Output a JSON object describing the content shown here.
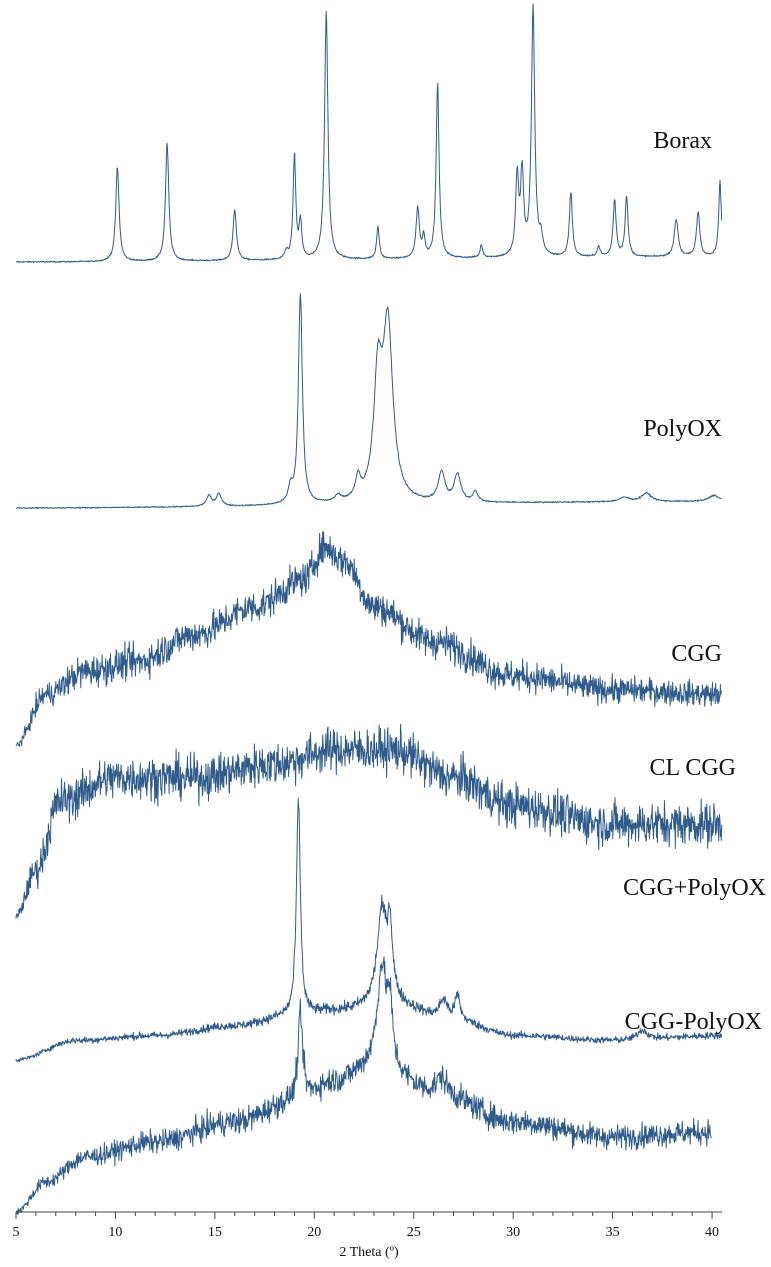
{
  "chart_data": {
    "type": "line",
    "xlabel": "2 Theta (º)",
    "ylabel": "",
    "xlim": [
      5,
      40.5
    ],
    "x_ticks": [
      5,
      10,
      15,
      20,
      25,
      30,
      35,
      40
    ],
    "x_minor_step": 1,
    "grid": false,
    "series": [
      {
        "name": "Borax",
        "color": "#2f5b8c",
        "noise": 0.01,
        "baseline": [
          [
            5,
            0.0
          ],
          [
            40.5,
            0.02
          ]
        ],
        "peaks": [
          [
            10.1,
            0.38,
            0.1
          ],
          [
            12.6,
            0.47,
            0.1
          ],
          [
            16.0,
            0.21,
            0.1
          ],
          [
            18.6,
            0.03,
            0.1
          ],
          [
            19.0,
            0.42,
            0.08
          ],
          [
            19.3,
            0.15,
            0.08
          ],
          [
            20.6,
            1.0,
            0.1
          ],
          [
            23.2,
            0.13,
            0.08
          ],
          [
            25.2,
            0.2,
            0.1
          ],
          [
            25.5,
            0.08,
            0.08
          ],
          [
            26.2,
            0.7,
            0.09
          ],
          [
            28.4,
            0.05,
            0.08
          ],
          [
            30.2,
            0.32,
            0.09
          ],
          [
            30.45,
            0.33,
            0.09
          ],
          [
            31.0,
            1.0,
            0.1
          ],
          [
            31.4,
            0.07,
            0.1
          ],
          [
            32.9,
            0.26,
            0.09
          ],
          [
            34.3,
            0.04,
            0.09
          ],
          [
            35.1,
            0.23,
            0.09
          ],
          [
            35.7,
            0.24,
            0.09
          ],
          [
            38.2,
            0.15,
            0.12
          ],
          [
            39.3,
            0.18,
            0.1
          ],
          [
            40.4,
            0.3,
            0.08
          ]
        ]
      },
      {
        "name": "PolyOX",
        "color": "#2f5b8c",
        "noise": 0.01,
        "baseline": [
          [
            5,
            0.0
          ],
          [
            40.5,
            0.03
          ]
        ],
        "peaks": [
          [
            14.7,
            0.05,
            0.15
          ],
          [
            15.2,
            0.06,
            0.15
          ],
          [
            18.8,
            0.07,
            0.12
          ],
          [
            19.3,
            1.0,
            0.12
          ],
          [
            21.2,
            0.03,
            0.2
          ],
          [
            22.2,
            0.1,
            0.15
          ],
          [
            23.2,
            0.55,
            0.25
          ],
          [
            23.7,
            0.82,
            0.3
          ],
          [
            26.4,
            0.14,
            0.2
          ],
          [
            27.2,
            0.13,
            0.2
          ],
          [
            28.1,
            0.05,
            0.15
          ],
          [
            35.6,
            0.02,
            0.3
          ],
          [
            36.7,
            0.04,
            0.3
          ],
          [
            40.1,
            0.03,
            0.3
          ]
        ]
      },
      {
        "name": "CGG",
        "color": "#2f5b8c",
        "noise": 0.07,
        "baseline": [
          [
            5,
            0.0
          ],
          [
            6.5,
            0.22
          ],
          [
            8.5,
            0.32
          ],
          [
            11,
            0.36
          ],
          [
            14,
            0.48
          ],
          [
            17,
            0.6
          ],
          [
            19.5,
            0.72
          ],
          [
            20.5,
            0.86
          ],
          [
            21.5,
            0.8
          ],
          [
            23,
            0.6
          ],
          [
            26,
            0.45
          ],
          [
            30,
            0.3
          ],
          [
            35,
            0.24
          ],
          [
            40.5,
            0.22
          ]
        ],
        "peaks": []
      },
      {
        "name": "CL CGG",
        "color": "#2f5b8c",
        "noise": 0.09,
        "baseline": [
          [
            5,
            0.0
          ],
          [
            6,
            0.2
          ],
          [
            7.2,
            0.5
          ],
          [
            10,
            0.6
          ],
          [
            14,
            0.6
          ],
          [
            18,
            0.66
          ],
          [
            21,
            0.72
          ],
          [
            24,
            0.72
          ],
          [
            27,
            0.6
          ],
          [
            30,
            0.48
          ],
          [
            35,
            0.4
          ],
          [
            40.5,
            0.4
          ]
        ],
        "peaks": []
      },
      {
        "name": "CGG+PolyOX",
        "color": "#2f5b8c",
        "noise": 0.03,
        "baseline": [
          [
            5,
            0.0
          ],
          [
            8,
            0.08
          ],
          [
            12,
            0.1
          ],
          [
            16,
            0.14
          ],
          [
            19,
            0.18
          ],
          [
            21,
            0.2
          ],
          [
            24,
            0.22
          ],
          [
            27,
            0.16
          ],
          [
            30,
            0.1
          ],
          [
            35,
            0.08
          ],
          [
            40.5,
            0.1
          ]
        ],
        "peaks": [
          [
            19.2,
            0.88,
            0.12
          ],
          [
            23.4,
            0.38,
            0.3
          ],
          [
            23.8,
            0.28,
            0.15
          ],
          [
            26.5,
            0.08,
            0.25
          ],
          [
            27.2,
            0.1,
            0.15
          ],
          [
            36.5,
            0.04,
            0.3
          ]
        ]
      },
      {
        "name": "CGG-PolyOX",
        "color": "#2f5b8c",
        "noise": 0.05,
        "baseline": [
          [
            5,
            0.0
          ],
          [
            6.5,
            0.12
          ],
          [
            8.5,
            0.22
          ],
          [
            12,
            0.28
          ],
          [
            16,
            0.36
          ],
          [
            19,
            0.44
          ],
          [
            21,
            0.52
          ],
          [
            23,
            0.58
          ],
          [
            26,
            0.48
          ],
          [
            30,
            0.36
          ],
          [
            35,
            0.3
          ],
          [
            40,
            0.32
          ]
        ],
        "peaks": [
          [
            19.3,
            0.34,
            0.15
          ],
          [
            23.4,
            0.4,
            0.28
          ],
          [
            23.8,
            0.22,
            0.15
          ],
          [
            26.4,
            0.06,
            0.3
          ]
        ],
        "x_end": 40
      }
    ]
  }
}
